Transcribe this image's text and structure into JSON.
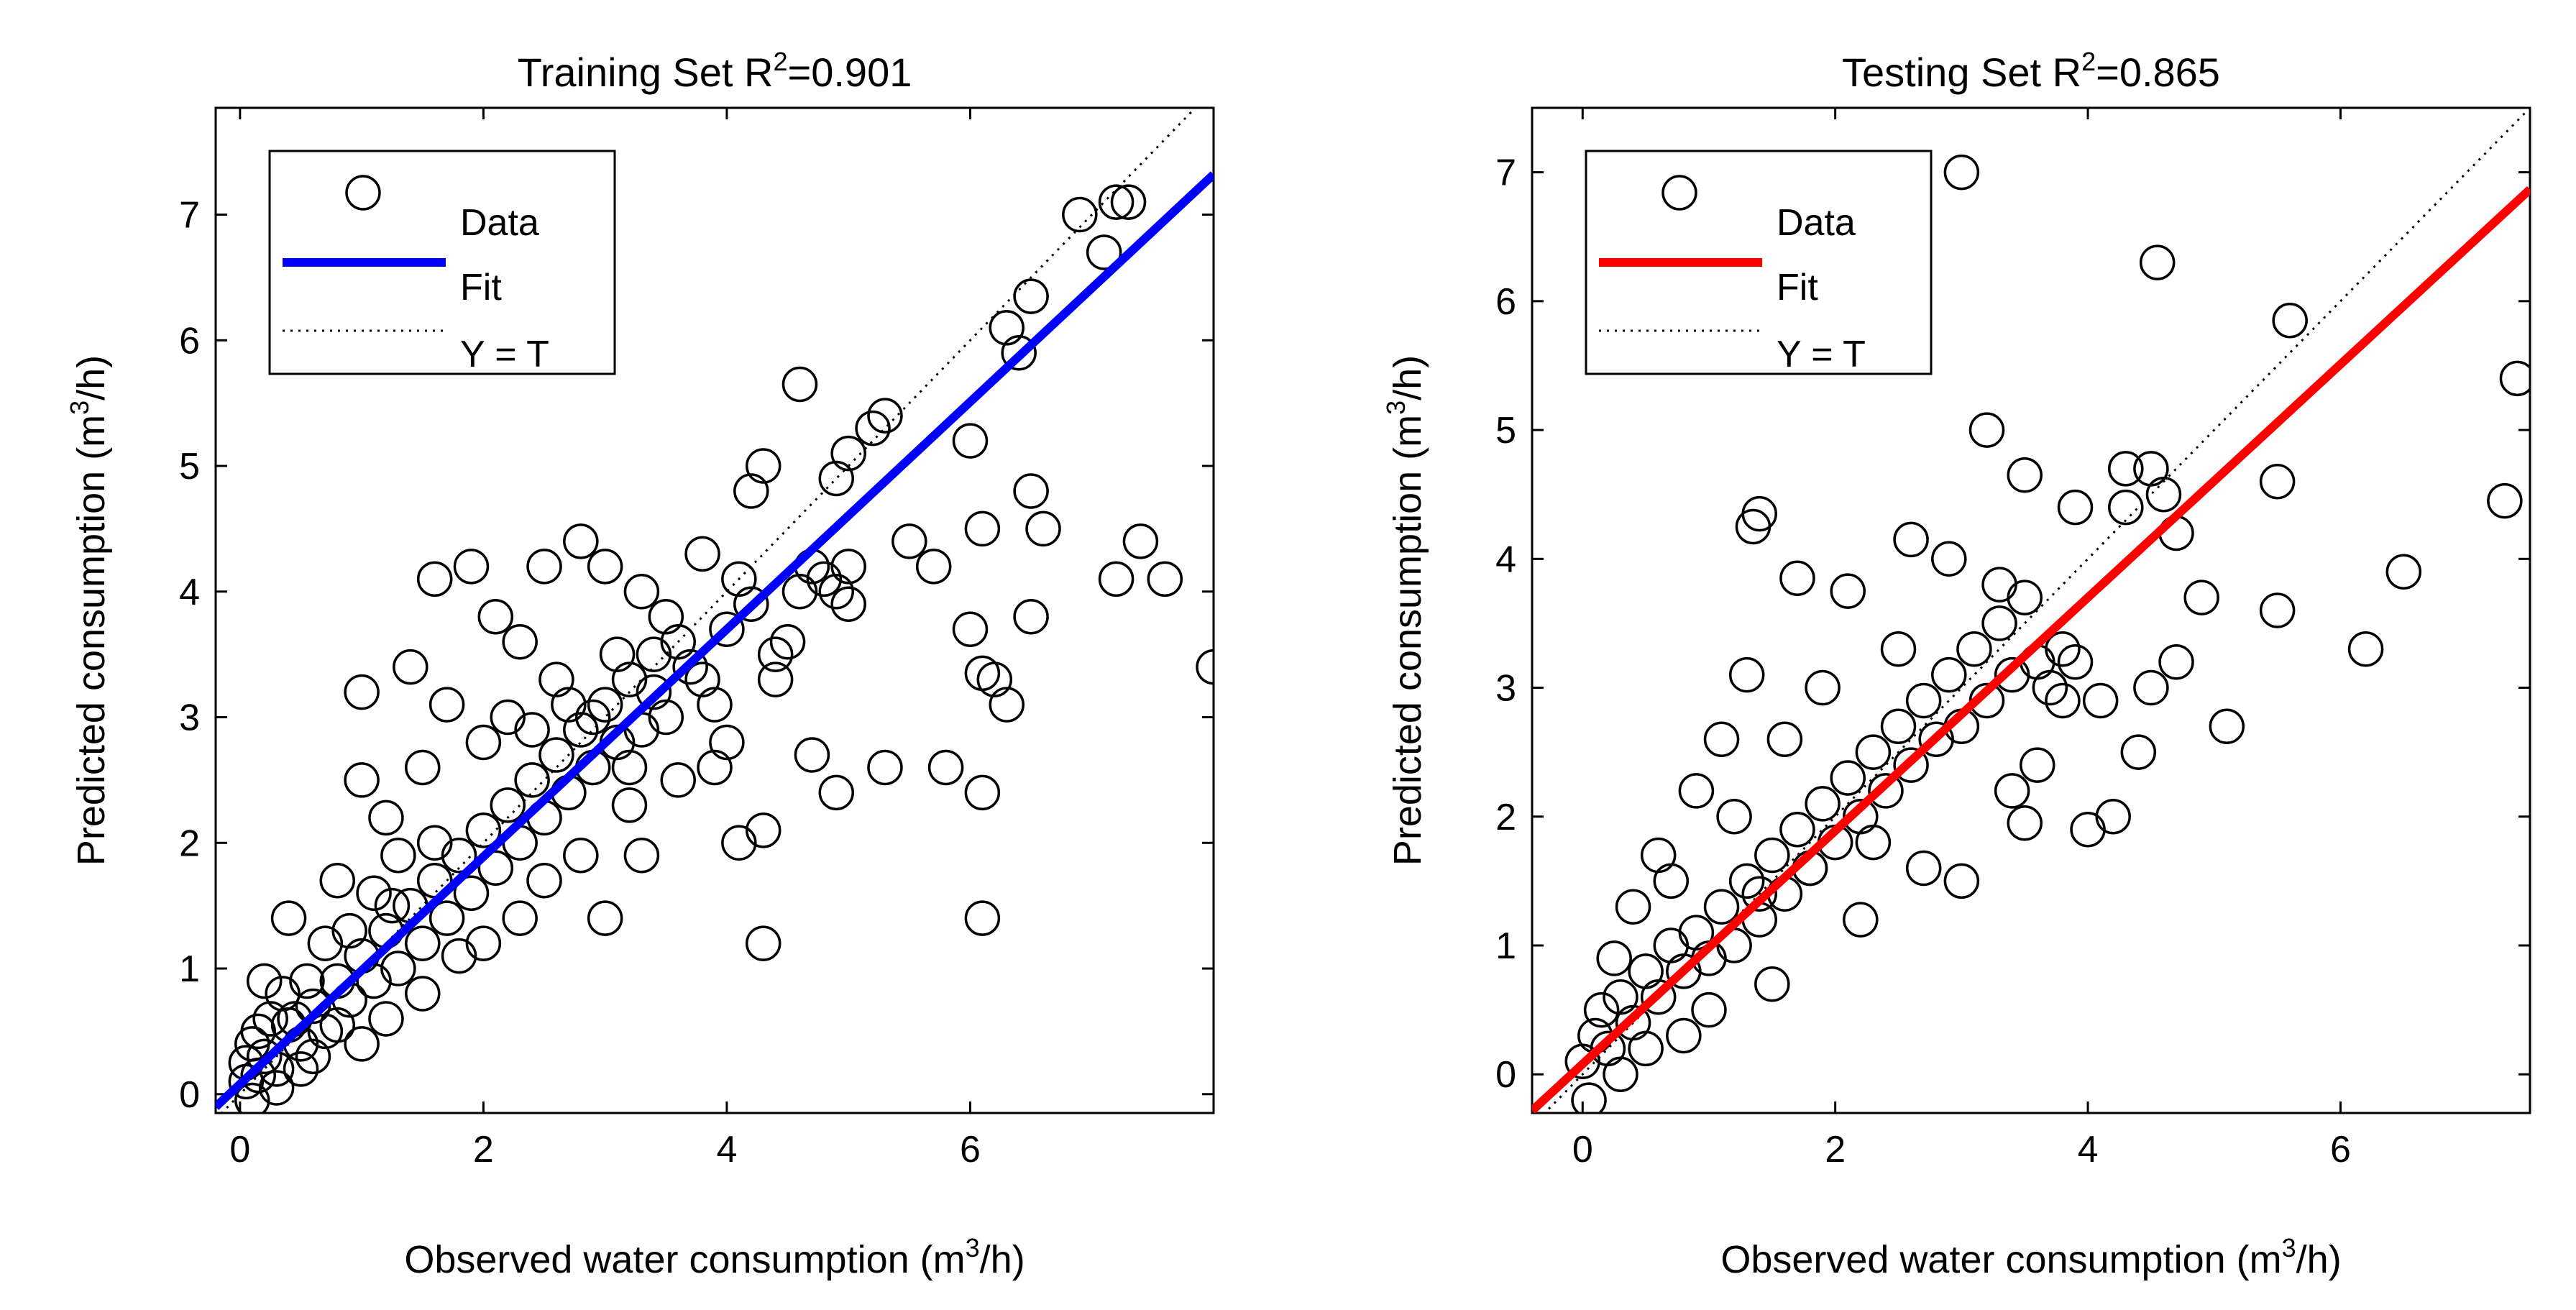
{
  "chart_data": [
    {
      "type": "scatter",
      "title": "Training Set R",
      "title_sup": "2",
      "title_value": "=0.901",
      "xlabel": "Observed water consumption (m",
      "xlabel_sup": "3",
      "xlabel_end": "/h)",
      "ylabel": "Predicted consumption (m",
      "ylabel_sup": "3",
      "ylabel_end": "/h)",
      "xlim": [
        -0.2,
        8.0
      ],
      "ylim": [
        -0.15,
        7.85
      ],
      "xticks": [
        "0",
        "2",
        "4",
        "6"
      ],
      "xtick_values": [
        0,
        2,
        4,
        6
      ],
      "yticks": [
        "0",
        "1",
        "2",
        "3",
        "4",
        "5",
        "6",
        "7"
      ],
      "ytick_values": [
        0,
        1,
        2,
        3,
        4,
        5,
        6,
        7
      ],
      "fit_color": "#0000ff",
      "fit": {
        "slope": 0.905,
        "intercept": 0.08
      },
      "legend": {
        "data": "Data",
        "fit": "Fit",
        "identity": "Y = T",
        "position": "top-left"
      },
      "points": [
        [
          0.1,
          -0.05
        ],
        [
          0.05,
          0.1
        ],
        [
          0.2,
          0.3
        ],
        [
          0.3,
          0.2
        ],
        [
          0.15,
          0.5
        ],
        [
          0.4,
          0.55
        ],
        [
          0.5,
          0.4
        ],
        [
          0.6,
          0.7
        ],
        [
          0.7,
          0.5
        ],
        [
          0.8,
          0.9
        ],
        [
          0.9,
          0.75
        ],
        [
          1.0,
          1.1
        ],
        [
          1.1,
          0.9
        ],
        [
          1.2,
          1.3
        ],
        [
          1.3,
          1.0
        ],
        [
          1.4,
          1.5
        ],
        [
          1.5,
          1.2
        ],
        [
          1.6,
          1.7
        ],
        [
          1.7,
          1.4
        ],
        [
          1.8,
          1.9
        ],
        [
          1.9,
          1.6
        ],
        [
          2.0,
          2.1
        ],
        [
          2.1,
          1.8
        ],
        [
          2.2,
          2.3
        ],
        [
          2.3,
          2.0
        ],
        [
          2.4,
          2.5
        ],
        [
          2.5,
          2.2
        ],
        [
          2.6,
          2.7
        ],
        [
          2.7,
          2.4
        ],
        [
          2.8,
          2.9
        ],
        [
          2.9,
          2.6
        ],
        [
          3.0,
          3.1
        ],
        [
          3.1,
          2.8
        ],
        [
          3.2,
          3.3
        ],
        [
          3.3,
          2.9
        ],
        [
          3.4,
          3.5
        ],
        [
          3.5,
          3.0
        ],
        [
          3.6,
          3.6
        ],
        [
          3.8,
          3.3
        ],
        [
          4.0,
          3.7
        ],
        [
          4.2,
          3.9
        ],
        [
          4.4,
          3.5
        ],
        [
          4.6,
          4.0
        ],
        [
          4.8,
          4.1
        ],
        [
          5.0,
          4.2
        ],
        [
          0.2,
          0.9
        ],
        [
          0.4,
          1.4
        ],
        [
          0.8,
          1.7
        ],
        [
          1.0,
          2.5
        ],
        [
          1.2,
          2.2
        ],
        [
          1.5,
          2.6
        ],
        [
          1.7,
          3.1
        ],
        [
          1.9,
          4.2
        ],
        [
          1.6,
          4.1
        ],
        [
          2.1,
          3.8
        ],
        [
          2.3,
          3.6
        ],
        [
          2.5,
          4.2
        ],
        [
          2.8,
          4.4
        ],
        [
          3.0,
          4.2
        ],
        [
          3.3,
          4.0
        ],
        [
          3.5,
          3.8
        ],
        [
          3.8,
          4.3
        ],
        [
          4.2,
          4.8
        ],
        [
          4.3,
          5.0
        ],
        [
          4.6,
          5.65
        ],
        [
          4.9,
          4.9
        ],
        [
          5.0,
          5.1
        ],
        [
          5.2,
          5.3
        ],
        [
          5.3,
          5.4
        ],
        [
          5.5,
          4.4
        ],
        [
          5.7,
          4.2
        ],
        [
          6.0,
          5.2
        ],
        [
          6.1,
          4.5
        ],
        [
          6.3,
          6.1
        ],
        [
          6.4,
          5.9
        ],
        [
          6.5,
          6.35
        ],
        [
          6.5,
          4.8
        ],
        [
          6.6,
          4.5
        ],
        [
          6.9,
          7.0
        ],
        [
          7.1,
          6.7
        ],
        [
          7.2,
          7.1
        ],
        [
          7.3,
          7.1
        ],
        [
          7.2,
          4.1
        ],
        [
          7.4,
          4.4
        ],
        [
          7.6,
          4.1
        ],
        [
          8.0,
          3.4
        ],
        [
          6.5,
          3.8
        ],
        [
          6.2,
          3.3
        ],
        [
          6.0,
          3.7
        ],
        [
          6.1,
          3.35
        ],
        [
          6.3,
          3.1
        ],
        [
          5.8,
          2.6
        ],
        [
          6.1,
          2.4
        ],
        [
          5.3,
          2.6
        ],
        [
          4.7,
          2.7
        ],
        [
          4.9,
          2.4
        ],
        [
          5.0,
          3.9
        ],
        [
          4.9,
          4.0
        ],
        [
          4.7,
          4.2
        ],
        [
          4.4,
          3.3
        ],
        [
          4.3,
          2.1
        ],
        [
          4.1,
          2.0
        ],
        [
          4.3,
          1.2
        ],
        [
          6.1,
          1.4
        ],
        [
          3.0,
          1.4
        ],
        [
          3.3,
          1.9
        ],
        [
          2.5,
          1.7
        ],
        [
          2.0,
          1.2
        ],
        [
          1.5,
          0.8
        ],
        [
          1.2,
          0.6
        ],
        [
          0.8,
          0.55
        ],
        [
          0.5,
          0.2
        ],
        [
          0.3,
          0.05
        ],
        [
          3.6,
          2.5
        ],
        [
          3.9,
          2.6
        ],
        [
          4.0,
          2.8
        ],
        [
          3.2,
          2.3
        ],
        [
          2.8,
          1.9
        ],
        [
          2.3,
          1.4
        ],
        [
          1.8,
          1.1
        ],
        [
          1.0,
          0.4
        ],
        [
          0.6,
          0.3
        ],
        [
          0.25,
          0.6
        ],
        [
          0.1,
          0.4
        ],
        [
          0.05,
          0.25
        ],
        [
          0.15,
          0.15
        ],
        [
          0.35,
          0.8
        ],
        [
          0.7,
          1.2
        ],
        [
          1.1,
          1.6
        ],
        [
          1.3,
          1.9
        ],
        [
          2.0,
          2.8
        ],
        [
          2.2,
          3.0
        ],
        [
          2.6,
          3.3
        ],
        [
          2.9,
          3.0
        ],
        [
          3.1,
          3.5
        ],
        [
          3.4,
          3.2
        ],
        [
          3.7,
          3.4
        ],
        [
          3.9,
          3.1
        ],
        [
          4.5,
          3.6
        ],
        [
          4.1,
          4.1
        ],
        [
          1.4,
          3.4
        ],
        [
          1.0,
          3.2
        ],
        [
          2.4,
          2.9
        ],
        [
          1.6,
          2.0
        ],
        [
          2.7,
          3.1
        ],
        [
          3.2,
          2.6
        ],
        [
          0.45,
          0.6
        ],
        [
          0.55,
          0.9
        ],
        [
          0.9,
          1.3
        ],
        [
          1.25,
          1.5
        ]
      ]
    },
    {
      "type": "scatter",
      "title": "Testing Set R",
      "title_sup": "2",
      "title_value": "=0.865",
      "xlabel": "Observed water consumption (m",
      "xlabel_sup": "3",
      "xlabel_end": "/h)",
      "ylabel": "Predicted consumption (m",
      "ylabel_sup": "3",
      "ylabel_end": "/h)",
      "xlim": [
        -0.4,
        7.5
      ],
      "ylim": [
        -0.3,
        7.5
      ],
      "xticks": [
        "0",
        "2",
        "4",
        "6"
      ],
      "xtick_values": [
        0,
        2,
        4,
        6
      ],
      "yticks": [
        "0",
        "1",
        "2",
        "3",
        "4",
        "5",
        "6",
        "7"
      ],
      "ytick_values": [
        0,
        1,
        2,
        3,
        4,
        5,
        6,
        7
      ],
      "fit_color": "#ff0000",
      "fit": {
        "slope": 0.905,
        "intercept": 0.08
      },
      "legend": {
        "data": "Data",
        "fit": "Fit",
        "identity": "Y = T",
        "position": "top-left"
      },
      "points": [
        [
          0.05,
          -0.2
        ],
        [
          0.0,
          0.1
        ],
        [
          0.1,
          0.3
        ],
        [
          0.2,
          0.2
        ],
        [
          0.15,
          0.5
        ],
        [
          0.3,
          0.6
        ],
        [
          0.4,
          0.4
        ],
        [
          0.5,
          0.8
        ],
        [
          0.6,
          0.6
        ],
        [
          0.7,
          1.0
        ],
        [
          0.8,
          0.8
        ],
        [
          0.9,
          1.1
        ],
        [
          1.0,
          0.9
        ],
        [
          1.1,
          1.3
        ],
        [
          1.2,
          1.0
        ],
        [
          1.3,
          1.5
        ],
        [
          1.4,
          1.2
        ],
        [
          1.5,
          1.7
        ],
        [
          1.6,
          1.4
        ],
        [
          1.7,
          1.9
        ],
        [
          1.8,
          1.6
        ],
        [
          1.9,
          2.1
        ],
        [
          2.0,
          1.8
        ],
        [
          2.1,
          2.3
        ],
        [
          2.2,
          2.0
        ],
        [
          2.3,
          2.5
        ],
        [
          2.4,
          2.2
        ],
        [
          2.5,
          2.7
        ],
        [
          2.6,
          2.4
        ],
        [
          2.7,
          2.9
        ],
        [
          2.8,
          2.6
        ],
        [
          2.9,
          3.1
        ],
        [
          3.0,
          2.7
        ],
        [
          3.1,
          3.3
        ],
        [
          3.2,
          2.9
        ],
        [
          3.3,
          3.5
        ],
        [
          3.4,
          3.1
        ],
        [
          3.5,
          3.7
        ],
        [
          3.6,
          3.2
        ],
        [
          3.8,
          3.3
        ],
        [
          3.0,
          7.0
        ],
        [
          4.55,
          6.3
        ],
        [
          5.6,
          5.85
        ],
        [
          7.4,
          5.4
        ],
        [
          7.3,
          4.45
        ],
        [
          6.5,
          3.9
        ],
        [
          6.2,
          3.3
        ],
        [
          5.5,
          3.6
        ],
        [
          5.1,
          2.7
        ],
        [
          5.5,
          4.6
        ],
        [
          4.7,
          4.2
        ],
        [
          4.6,
          4.5
        ],
        [
          4.5,
          4.7
        ],
        [
          4.3,
          4.7
        ],
        [
          4.3,
          4.4
        ],
        [
          3.9,
          4.4
        ],
        [
          3.5,
          4.65
        ],
        [
          3.2,
          5.0
        ],
        [
          1.4,
          4.35
        ],
        [
          1.35,
          4.25
        ],
        [
          1.7,
          3.85
        ],
        [
          2.1,
          3.75
        ],
        [
          2.6,
          4.15
        ],
        [
          2.9,
          4.0
        ],
        [
          3.3,
          3.8
        ],
        [
          4.9,
          3.7
        ],
        [
          4.7,
          3.2
        ],
        [
          4.5,
          3.0
        ],
        [
          4.4,
          2.5
        ],
        [
          4.1,
          2.9
        ],
        [
          4.2,
          2.0
        ],
        [
          4.0,
          1.9
        ],
        [
          3.6,
          2.4
        ],
        [
          3.5,
          1.95
        ],
        [
          3.0,
          1.5
        ],
        [
          2.3,
          1.8
        ],
        [
          2.2,
          1.2
        ],
        [
          1.8,
          1.6
        ],
        [
          1.5,
          0.7
        ],
        [
          1.4,
          1.4
        ],
        [
          1.2,
          2.0
        ],
        [
          1.1,
          2.6
        ],
        [
          0.9,
          2.2
        ],
        [
          0.6,
          1.7
        ],
        [
          0.4,
          1.3
        ],
        [
          0.25,
          0.9
        ],
        [
          0.8,
          0.3
        ],
        [
          1.0,
          0.5
        ],
        [
          0.5,
          0.2
        ],
        [
          0.3,
          0.0
        ],
        [
          3.9,
          3.2
        ],
        [
          3.8,
          2.9
        ],
        [
          3.7,
          3.0
        ],
        [
          3.4,
          2.2
        ],
        [
          2.7,
          1.6
        ],
        [
          2.5,
          3.3
        ],
        [
          1.9,
          3.0
        ],
        [
          1.6,
          2.6
        ],
        [
          1.3,
          3.1
        ],
        [
          0.7,
          1.5
        ]
      ]
    }
  ]
}
